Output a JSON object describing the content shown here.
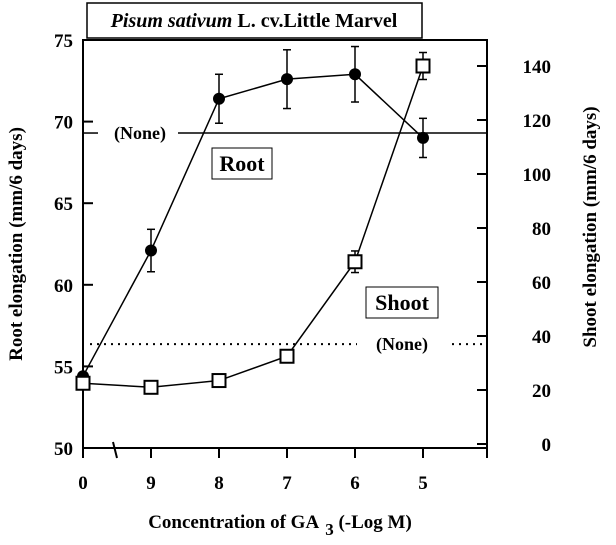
{
  "chart_data": {
    "type": "line",
    "title_italic": "Pisum sativum",
    "title_rest": " L. cv.Little Marvel",
    "xlabel_main": "Concentration of GA",
    "xlabel_sub": "3",
    "xlabel_tail": " (-Log M)",
    "ylabel_left": "Root elongation (mm/6 days)",
    "ylabel_right": "Shoot elongation (mm/6 days)",
    "categories": [
      "0",
      "9",
      "8",
      "7",
      "6",
      "5"
    ],
    "ylim_left": [
      50,
      75
    ],
    "ylim_right": [
      0,
      150
    ],
    "yticks_left": [
      50,
      55,
      60,
      65,
      70,
      75
    ],
    "yticks_right": [
      0,
      20,
      40,
      60,
      80,
      100,
      120,
      140
    ],
    "series": [
      {
        "name": "Root",
        "axis": "left",
        "marker": "filled-circle",
        "values": [
          54.4,
          62.1,
          71.4,
          72.6,
          72.9,
          69.0
        ],
        "errors": [
          0.2,
          1.3,
          1.5,
          1.8,
          1.7,
          1.2
        ]
      },
      {
        "name": "Shoot",
        "axis": "right",
        "marker": "open-square",
        "values": [
          22.5,
          21.0,
          23.5,
          32.5,
          67.5,
          140.0
        ],
        "errors": [
          0,
          0,
          0,
          0,
          4,
          5
        ]
      }
    ],
    "reference_lines": [
      {
        "label": "(None)",
        "axis": "left",
        "value": 69.3,
        "style": "solid"
      },
      {
        "label": "(None)",
        "axis": "right",
        "value": 37,
        "style": "dotted"
      }
    ]
  }
}
